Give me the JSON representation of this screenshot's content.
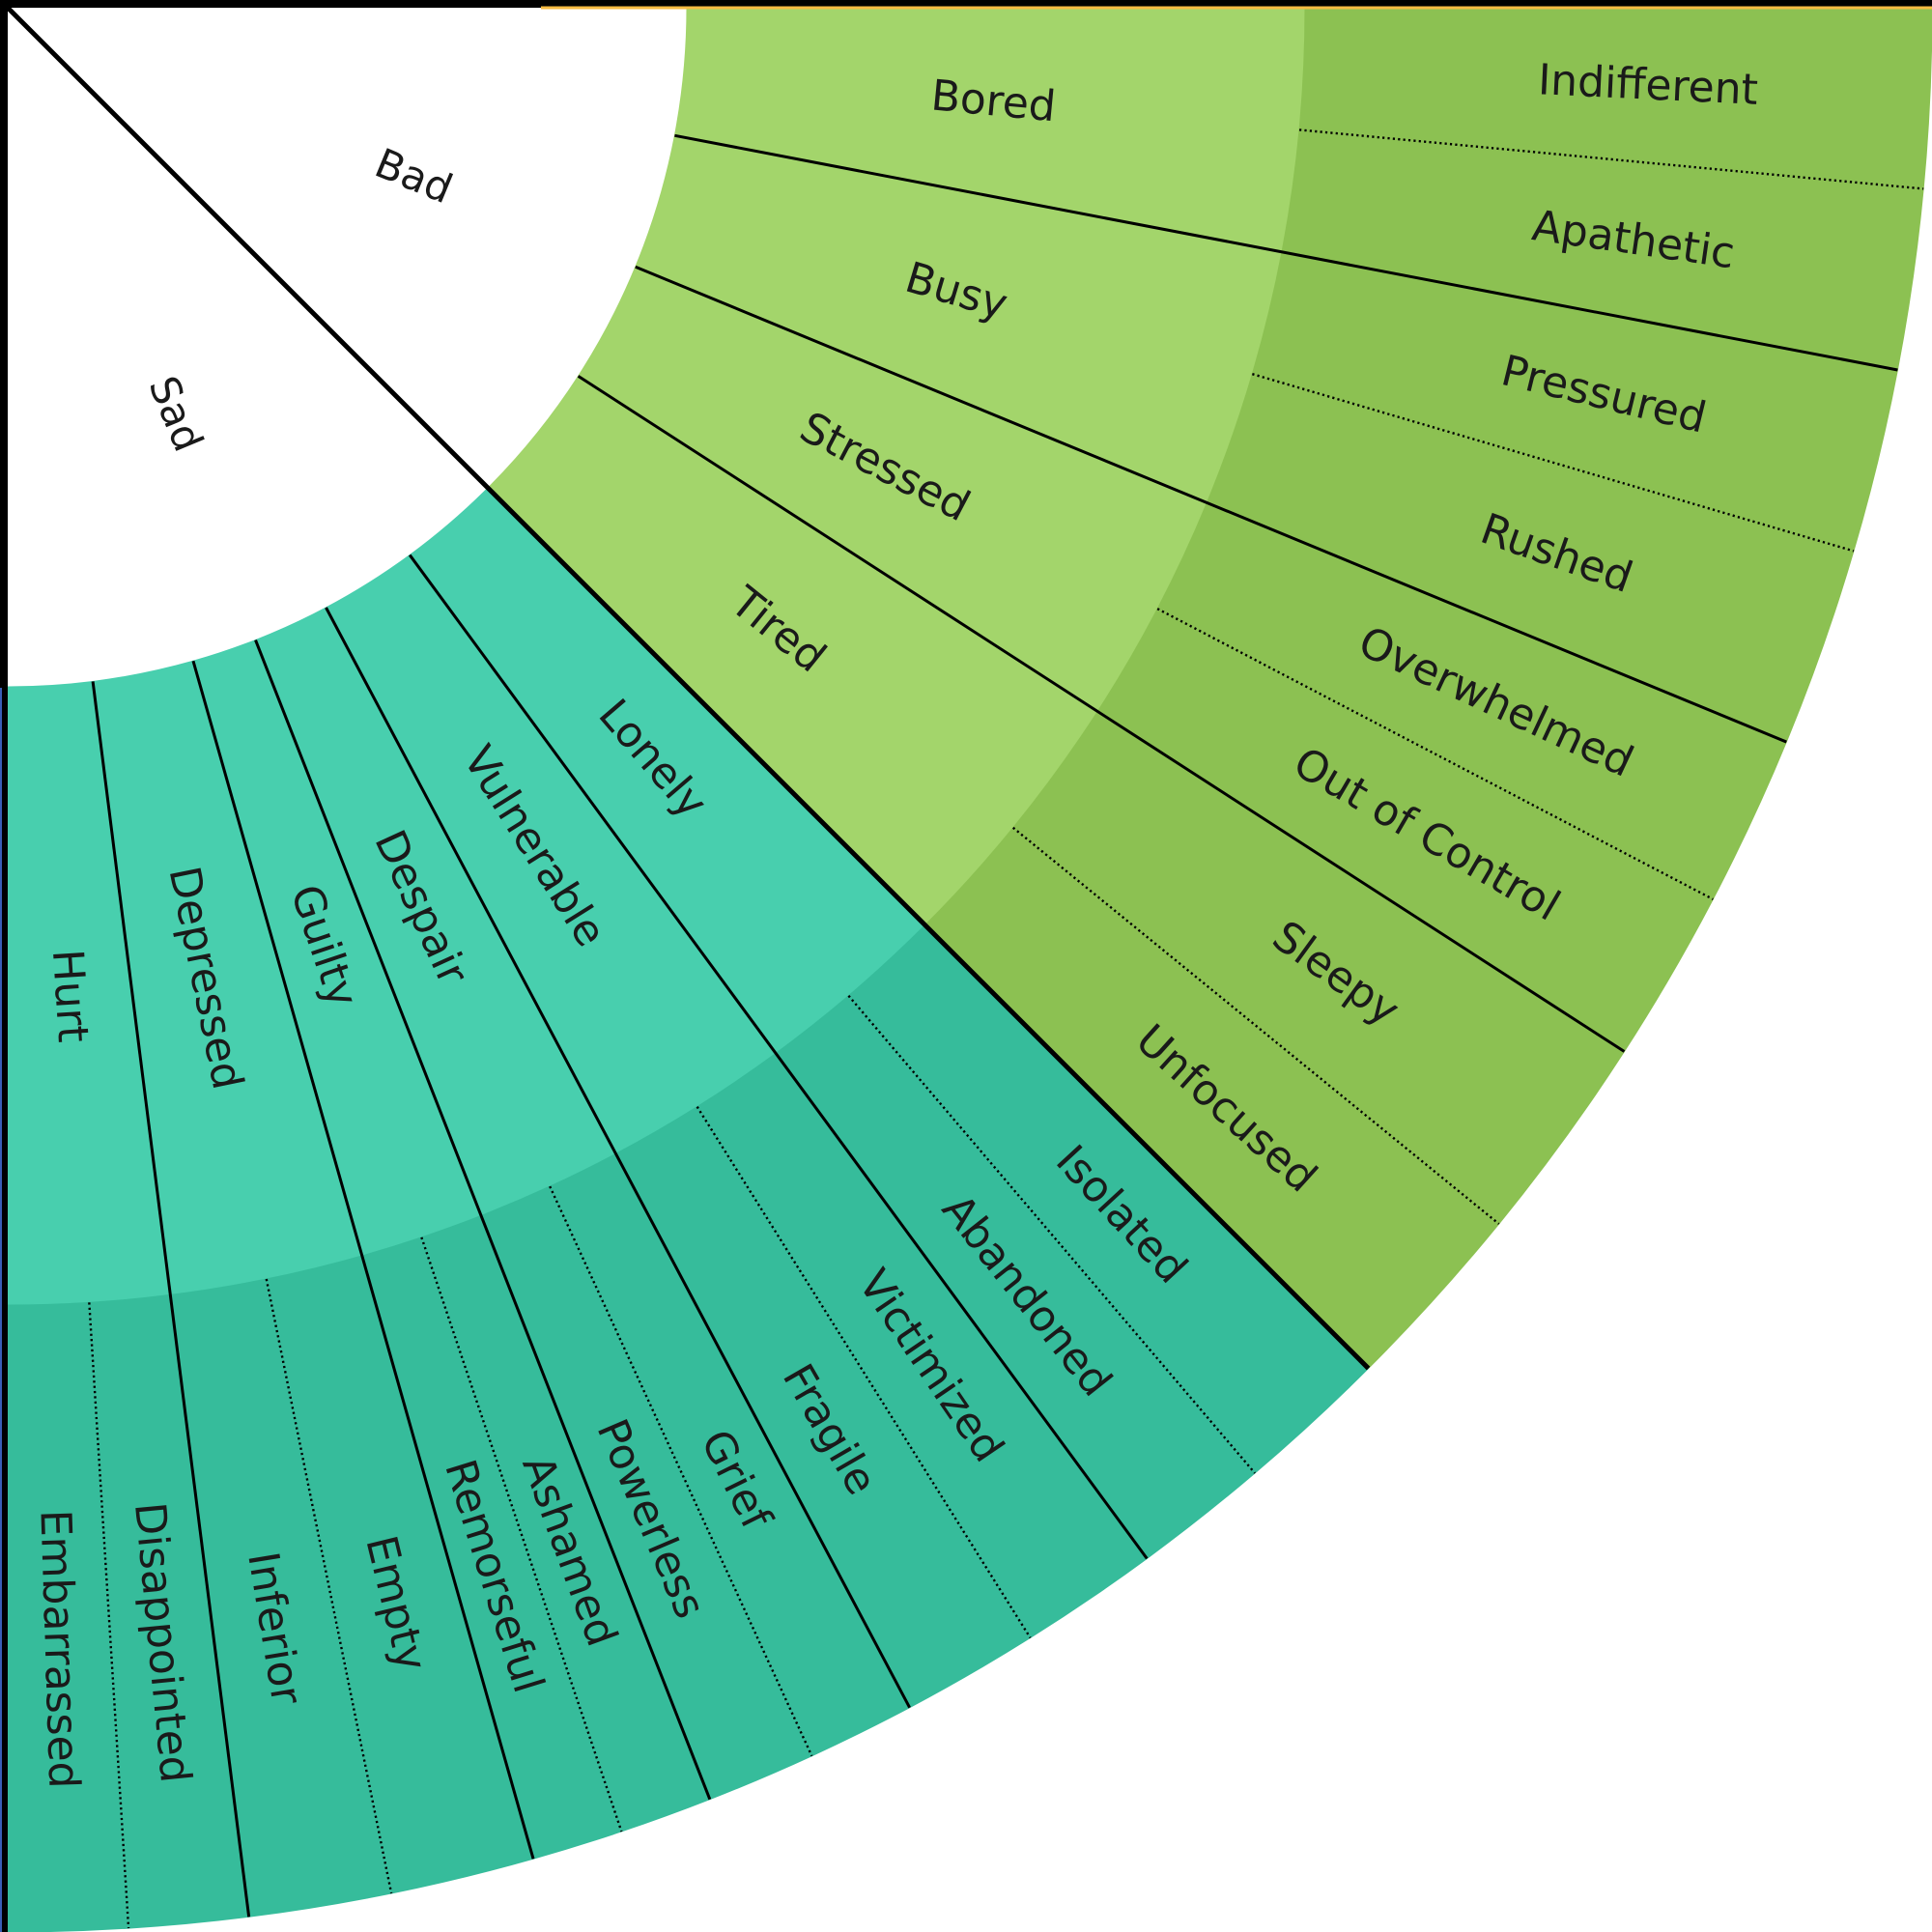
{
  "colors": {
    "bad_inner": "#a3d56b",
    "bad_outer": "#8cc152",
    "sad_inner": "#48cfae",
    "sad_outer": "#36bc9b",
    "line": "#000000",
    "edge_top": "#f6bb42",
    "edge_left": "#3a5fb4"
  },
  "core": {
    "bad": "Bad",
    "sad": "Sad"
  },
  "bad": [
    {
      "label": "Bored",
      "children": [
        "Indifferent",
        "Apathetic"
      ]
    },
    {
      "label": "Busy",
      "children": [
        "Pressured",
        "Rushed"
      ]
    },
    {
      "label": "Stressed",
      "children": [
        "Overwhelmed",
        "Out of Control"
      ]
    },
    {
      "label": "Tired",
      "children": [
        "Sleepy",
        "Unfocused"
      ]
    }
  ],
  "sad": [
    {
      "label": "Lonely",
      "children": [
        "Isolated",
        "Abandoned"
      ]
    },
    {
      "label": "Vulnerable",
      "children": [
        "Victimized",
        "Fragile"
      ]
    },
    {
      "label": "Despair",
      "children": [
        "Grief",
        "Powerless"
      ]
    },
    {
      "label": "Guilty",
      "children": [
        "Ashamed",
        "Remorseful"
      ]
    },
    {
      "label": "Depressed",
      "children": [
        "Empty",
        "Inferior"
      ]
    },
    {
      "label": "Hurt",
      "children": [
        "Disappointed",
        "Embarrassed"
      ]
    }
  ]
}
